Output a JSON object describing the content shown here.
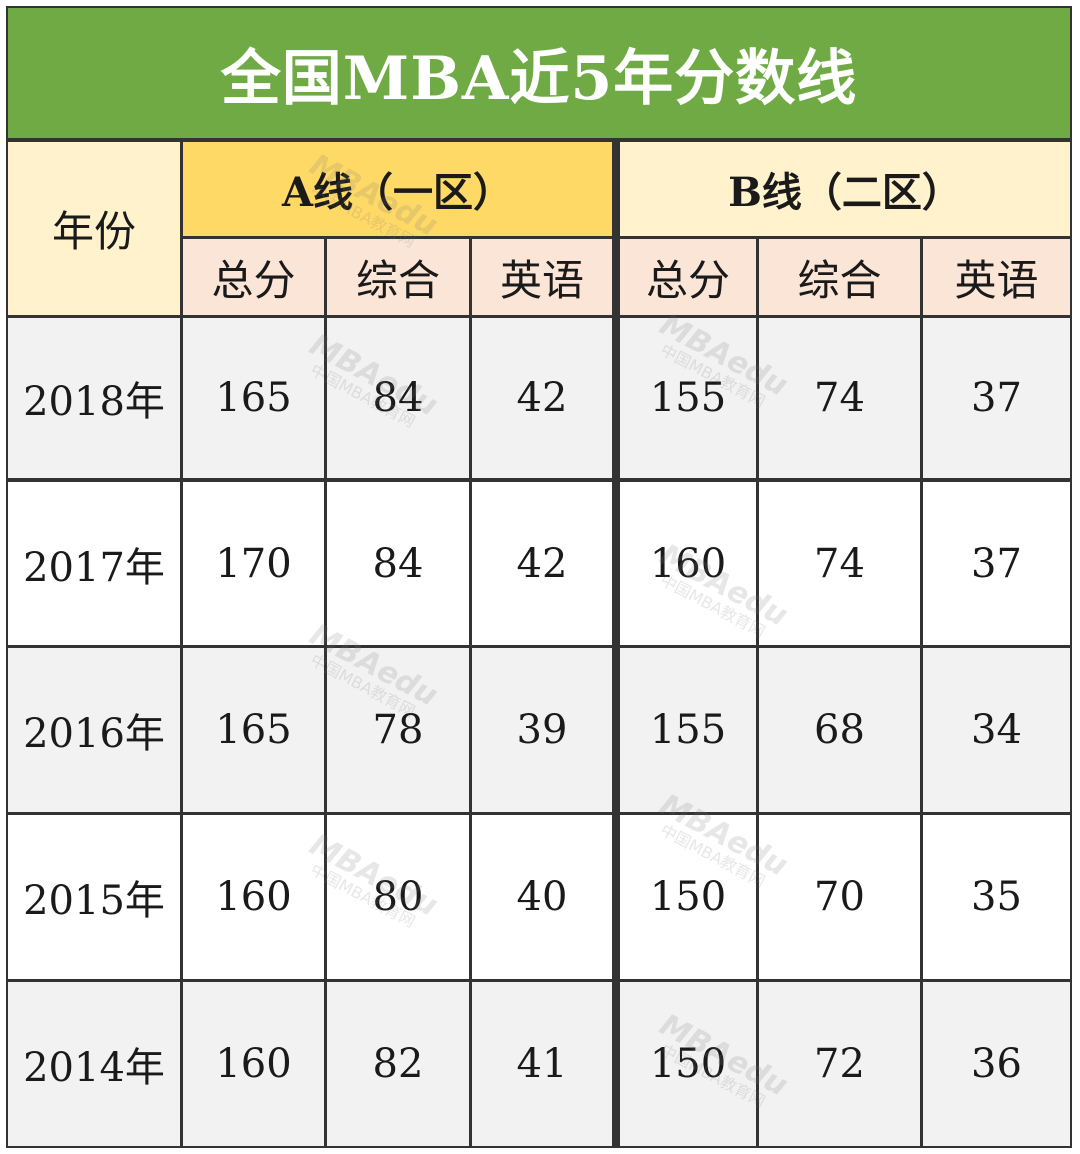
{
  "title": "全国MBA近5年分数线",
  "headers": {
    "year": "年份",
    "group_a": "A线（一区）",
    "group_b": "B线（二区）",
    "sub": [
      "总分",
      "综合",
      "英语",
      "总分",
      "综合",
      "英语"
    ]
  },
  "rows": [
    {
      "year": "2018年",
      "values": [
        "165",
        "84",
        "42",
        "155",
        "74",
        "37"
      ]
    },
    {
      "year": "2017年",
      "values": [
        "170",
        "84",
        "42",
        "160",
        "74",
        "37"
      ]
    },
    {
      "year": "2016年",
      "values": [
        "165",
        "78",
        "39",
        "155",
        "68",
        "34"
      ]
    },
    {
      "year": "2015年",
      "values": [
        "160",
        "80",
        "40",
        "150",
        "70",
        "35"
      ]
    },
    {
      "year": "2014年",
      "values": [
        "160",
        "82",
        "41",
        "150",
        "72",
        "36"
      ]
    }
  ],
  "watermark": {
    "brand": "MBAedu",
    "sub": "中国MBA教育网"
  },
  "colors": {
    "title_bg": "#6faa45",
    "group_a_bg": "#ffd966",
    "group_b_bg": "#fff2cc",
    "sub_bg": "#fbe5d6",
    "row_alt_bg": "#f2f2f2",
    "grid": "#333333"
  }
}
